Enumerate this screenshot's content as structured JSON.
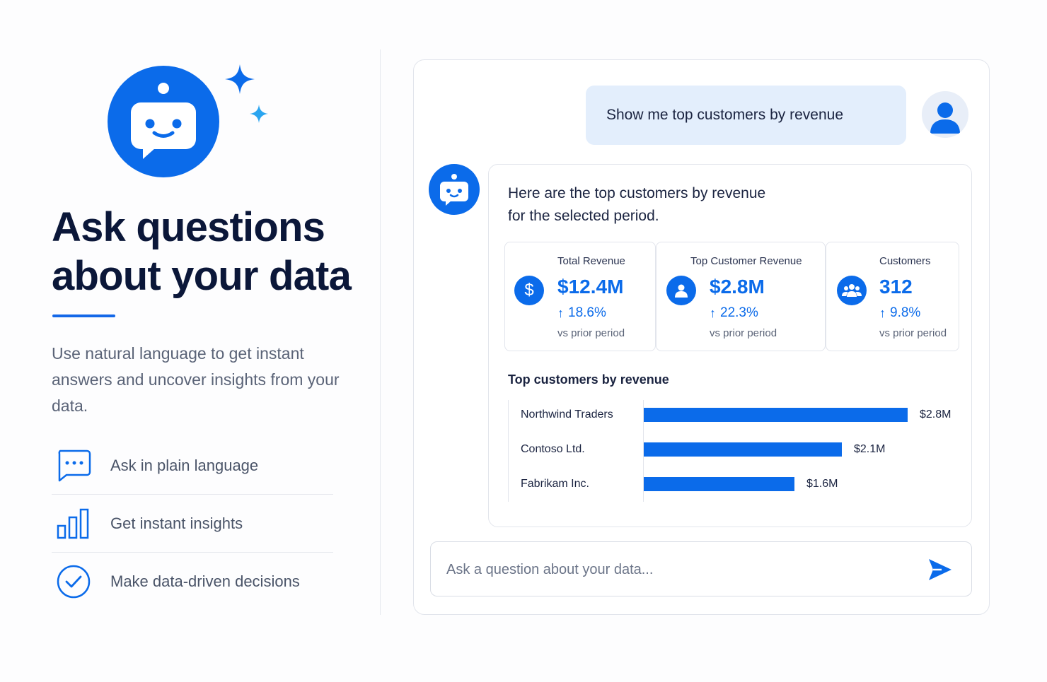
{
  "hero": {
    "headline_line1": "Ask questions",
    "headline_line2": "about your data",
    "subtext": "Use natural language to get instant answers and uncover insights from your data."
  },
  "features": [
    {
      "label": "Ask in plain language",
      "icon": "chat-bubble-icon"
    },
    {
      "label": "Get instant insights",
      "icon": "bar-chart-icon"
    },
    {
      "label": "Make data-driven decisions",
      "icon": "check-circle-icon"
    }
  ],
  "chat": {
    "user_message": "Show me top customers by revenue",
    "bot_message_line1": "Here are the top customers by revenue",
    "bot_message_line2": "for the selected period.",
    "kpis": [
      {
        "title": "Total Revenue",
        "value": "$12.4M",
        "change": "18.6%",
        "compare": "vs prior period",
        "icon": "dollar-icon"
      },
      {
        "title": "Top Customer Revenue",
        "value": "$2.8M",
        "change": "22.3%",
        "compare": "vs prior period",
        "icon": "person-icon"
      },
      {
        "title": "Customers",
        "value": "312",
        "change": "9.8%",
        "compare": "vs prior period",
        "icon": "group-icon"
      }
    ],
    "input": {
      "placeholder": "Ask a question about your data..."
    }
  },
  "chart_data": {
    "type": "bar",
    "orientation": "horizontal",
    "title": "Top customers by revenue",
    "categories": [
      "Northwind Traders",
      "Contoso Ltd.",
      "Fabrikam Inc."
    ],
    "values": [
      2.8,
      2.1,
      1.6
    ],
    "value_labels": [
      "$2.8M",
      "$2.1M",
      "$1.6M"
    ],
    "unit": "$M",
    "color": "#0b6bea"
  },
  "colors": {
    "accent": "#0b6bea",
    "heading": "#0b1739",
    "user_bubble": "#e3eefc"
  }
}
